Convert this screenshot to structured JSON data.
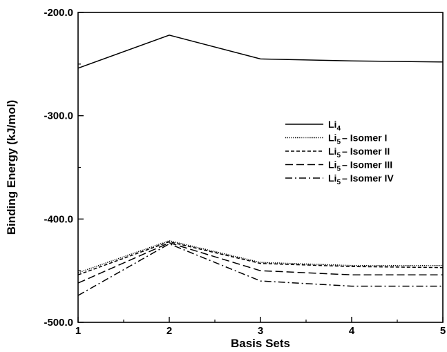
{
  "chart_data": {
    "type": "line",
    "xlabel": "Basis Sets",
    "ylabel": "Binding Energy (kJ/mol)",
    "x": [
      1,
      2,
      3,
      4,
      5
    ],
    "x_ticks": [
      "1",
      "2",
      "3",
      "4",
      "5"
    ],
    "y_ticks": [
      "-200.0",
      "-300.0",
      "-400.0",
      "-500.0"
    ],
    "y_tick_values": [
      -200,
      -300,
      -400,
      -500
    ],
    "xlim": [
      1,
      5
    ],
    "ylim": [
      -500,
      -200
    ],
    "grid": false,
    "legend_position": "right-center",
    "series": [
      {
        "name_main": "Li",
        "name_sub": "4",
        "name_rest": "",
        "dash": "solid",
        "values": [
          -254,
          -222,
          -245,
          -247,
          -248
        ]
      },
      {
        "name_main": "Li",
        "name_sub": "5",
        "name_rest": "– Isomer I",
        "dash": "dotted",
        "values": [
          -452,
          -421,
          -442,
          -445,
          -445
        ]
      },
      {
        "name_main": "Li",
        "name_sub": "5",
        "name_rest": "– Isomer II",
        "dash": "short-dash",
        "values": [
          -454,
          -422,
          -443,
          -446,
          -447
        ]
      },
      {
        "name_main": "Li",
        "name_sub": "5",
        "name_rest": "– Isomer III",
        "dash": "long-dash",
        "values": [
          -462,
          -423,
          -450,
          -454,
          -454
        ]
      },
      {
        "name_main": "Li",
        "name_sub": "5",
        "name_rest": "– Isomer IV",
        "dash": "dash-dot",
        "values": [
          -474,
          -424,
          -460,
          -465,
          -465
        ]
      }
    ]
  }
}
